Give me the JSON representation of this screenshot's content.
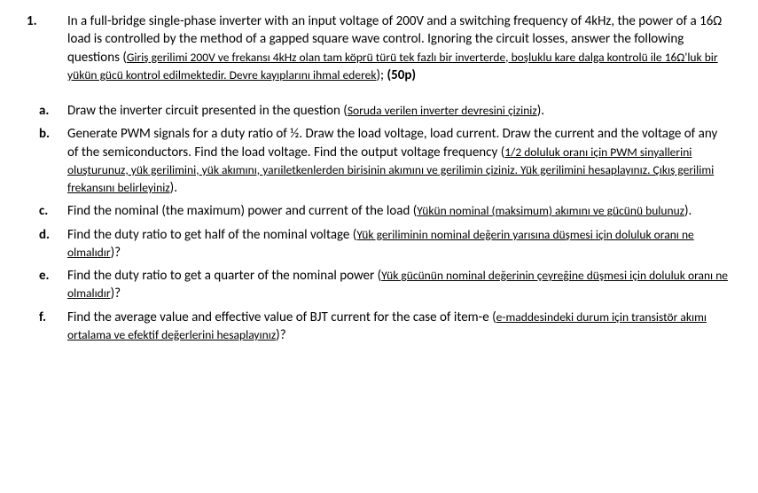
{
  "question": {
    "number": "1.",
    "intro_en_1": "In a full-bridge single-phase inverter with an input voltage of 200V and a switching frequency of 4kHz, the power of a 16Ω load is controlled by the method of a gapped square wave control. Ignoring the circuit losses, answer the following questions (",
    "intro_tr": "Giriş gerilimi 200V ve frekansı 4kHz olan tam köprü türü tek fazlı bir inverterde, boşluklu kare dalga kontrolü ile 16Ω'luk bir yükün gücü kontrol edilmektedir. Devre kayıplarını ihmal ederek",
    "intro_en_2": "); ",
    "points": "(50p)"
  },
  "items": [
    {
      "letter": "a.",
      "en_1": "Draw the inverter circuit presented in the question  (",
      "tr": "Soruda verilen inverter devresini çiziniz",
      "en_2": ")."
    },
    {
      "letter": "b.",
      "en_1": "Generate PWM signals for a duty ratio of ½. Draw the load voltage, load current. Draw the current and the voltage of any of the semiconductors. Find the load voltage. Find the output voltage frequency (",
      "tr": "1/2 doluluk oranı için PWM sinyallerini oluşturunuz, yük gerilimini, yük akımını, yarıiletkenlerden birisinin akımını ve gerilimin çiziniz. Yük gerilimini hesaplayınız. Çıkış gerilimi frekansını belirleyiniz",
      "en_2": ")."
    },
    {
      "letter": "c.",
      "en_1": "Find the nominal (the maximum) power and current of the load (",
      "tr": "Yükün nominal (maksimum) akımını ve gücünü bulunuz",
      "en_2": ")."
    },
    {
      "letter": "d.",
      "en_1": "Find the duty ratio to get half of the nominal voltage (",
      "tr": "Yük geriliminin nominal değerin yarısına düşmesi için doluluk oranı ne olmalıdır",
      "en_2": ")?"
    },
    {
      "letter": "e.",
      "en_1": "Find the duty ratio to get a quarter of the nominal power (",
      "tr": "Yük gücünün nominal değerinin çeyreğine düşmesi için doluluk oranı ne olmalıdır",
      "en_2": ")?"
    },
    {
      "letter": "f.",
      "en_1": "Find the average value and effective value of BJT current for the case of item-e (",
      "tr": "e-maddesindeki durum için transistör akımı ortalama ve efektif değerlerini hesaplayınız",
      "en_2": ")?"
    }
  ]
}
